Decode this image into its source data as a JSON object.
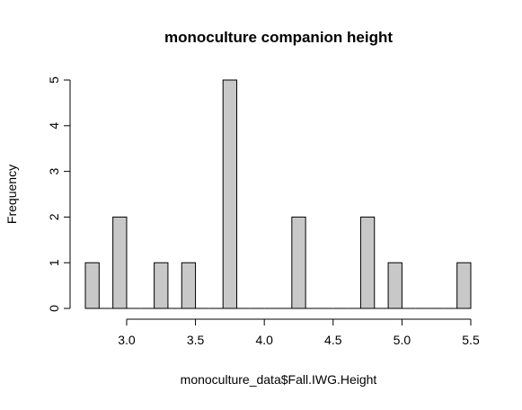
{
  "chart_data": {
    "type": "bar",
    "subtype": "histogram",
    "title": "monoculture companion height",
    "xlabel": "monoculture_data$Fall.IWG.Height",
    "ylabel": "Frequency",
    "bin_width": 0.1,
    "bins": [
      {
        "start": 2.7,
        "end": 2.8,
        "count": 1
      },
      {
        "start": 2.8,
        "end": 2.9,
        "count": 0
      },
      {
        "start": 2.9,
        "end": 3.0,
        "count": 2
      },
      {
        "start": 3.0,
        "end": 3.1,
        "count": 0
      },
      {
        "start": 3.1,
        "end": 3.2,
        "count": 0
      },
      {
        "start": 3.2,
        "end": 3.3,
        "count": 1
      },
      {
        "start": 3.3,
        "end": 3.4,
        "count": 0
      },
      {
        "start": 3.4,
        "end": 3.5,
        "count": 1
      },
      {
        "start": 3.5,
        "end": 3.6,
        "count": 0
      },
      {
        "start": 3.6,
        "end": 3.7,
        "count": 0
      },
      {
        "start": 3.7,
        "end": 3.8,
        "count": 5
      },
      {
        "start": 3.8,
        "end": 3.9,
        "count": 0
      },
      {
        "start": 3.9,
        "end": 4.0,
        "count": 0
      },
      {
        "start": 4.0,
        "end": 4.1,
        "count": 0
      },
      {
        "start": 4.1,
        "end": 4.2,
        "count": 0
      },
      {
        "start": 4.2,
        "end": 4.3,
        "count": 2
      },
      {
        "start": 4.3,
        "end": 4.4,
        "count": 0
      },
      {
        "start": 4.4,
        "end": 4.5,
        "count": 0
      },
      {
        "start": 4.5,
        "end": 4.6,
        "count": 0
      },
      {
        "start": 4.6,
        "end": 4.7,
        "count": 0
      },
      {
        "start": 4.7,
        "end": 4.8,
        "count": 2
      },
      {
        "start": 4.8,
        "end": 4.9,
        "count": 0
      },
      {
        "start": 4.9,
        "end": 5.0,
        "count": 1
      },
      {
        "start": 5.0,
        "end": 5.1,
        "count": 0
      },
      {
        "start": 5.1,
        "end": 5.2,
        "count": 0
      },
      {
        "start": 5.2,
        "end": 5.3,
        "count": 0
      },
      {
        "start": 5.3,
        "end": 5.4,
        "count": 0
      },
      {
        "start": 5.4,
        "end": 5.5,
        "count": 1
      }
    ],
    "xlim": [
      2.7,
      5.5
    ],
    "ylim": [
      0,
      5
    ],
    "x_ticks": [
      3.0,
      3.5,
      4.0,
      4.5,
      5.0,
      5.5
    ],
    "x_tick_labels": [
      "3.0",
      "3.5",
      "4.0",
      "4.5",
      "5.0",
      "5.5"
    ],
    "y_ticks": [
      0,
      1,
      2,
      3,
      4,
      5
    ],
    "y_tick_labels": [
      "0",
      "1",
      "2",
      "3",
      "4",
      "5"
    ],
    "grid": false,
    "legend": "none",
    "colors": {
      "bar_fill": "#c8c8c8",
      "bar_stroke": "#000000",
      "axis": "#000000"
    }
  }
}
